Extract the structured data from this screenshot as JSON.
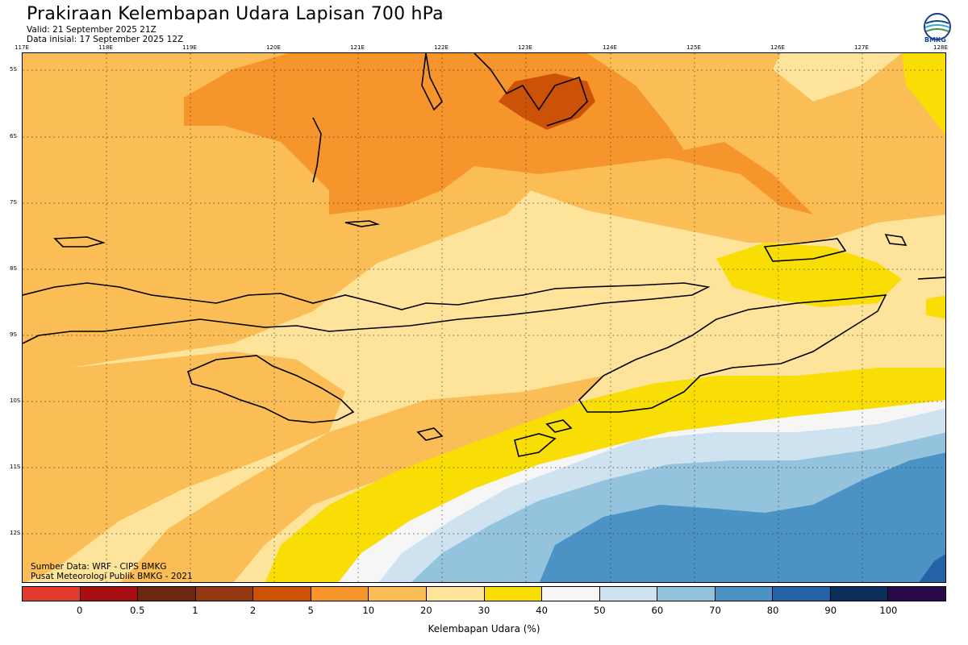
{
  "header": {
    "title": "Prakiraan Kelembapan Udara Lapisan 700 hPa",
    "valid": "Valid: 21 September 2025 21Z",
    "initial": "Data inisial: 17 September 2025 12Z"
  },
  "logo": {
    "text": "BMKG",
    "icon": "bmkg-logo-icon"
  },
  "map": {
    "lon_labels": [
      "117E",
      "118E",
      "119E",
      "120E",
      "121E",
      "122E",
      "123E",
      "124E",
      "125E",
      "126E",
      "127E",
      "128E"
    ],
    "lat_labels": [
      "5S",
      "6S",
      "7S",
      "8S",
      "9S",
      "10S",
      "11S",
      "12S"
    ]
  },
  "footer": {
    "source": "Sumber Data: WRF - CIPS BMKG",
    "publisher": "Pusat Meteorologi Publik BMKG - 2021"
  },
  "legend": {
    "colors": [
      "#e23a2e",
      "#a80e12",
      "#6e2710",
      "#943812",
      "#cc5208",
      "#f7952d",
      "#fbbd55",
      "#fde49a",
      "#f9de05",
      "#f6f6f6",
      "#cfe2ef",
      "#93c3dd",
      "#4b93c4",
      "#2462a7",
      "#0b2e5a",
      "#2b0a4a"
    ],
    "ticks": [
      "0",
      "0.5",
      "1",
      "2",
      "5",
      "10",
      "20",
      "30",
      "40",
      "50",
      "60",
      "70",
      "80",
      "90",
      "100"
    ],
    "label": "Kelembapan Udara (%)"
  }
}
